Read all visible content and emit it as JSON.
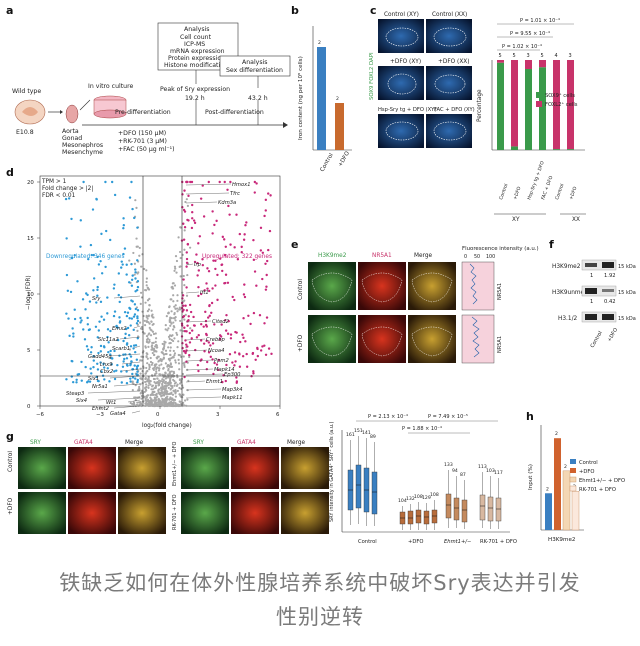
{
  "panel_letters": [
    "a",
    "b",
    "c",
    "d",
    "e",
    "f",
    "g",
    "h"
  ],
  "panel_a": {
    "wild_type": "Wild type",
    "stage": "E10.8",
    "culture": "In vitro culture",
    "tissues": [
      "Aorta",
      "Gonad",
      "Mesonephros",
      "Mesenchyme"
    ],
    "analysis_top": {
      "title": "Analysis",
      "items": [
        "Cell count",
        "ICP-MS",
        "mRNA expression",
        "Protein expression",
        "Histone modification"
      ]
    },
    "peak": "Peak of Sry expression",
    "peak_time": "19.2 h",
    "pre": "Pre-differentiation",
    "post": "Post-differentiation",
    "treatments": [
      "+DFO (150 μM)",
      "+RK-701 (3 μM)",
      "+FAC (50 μg ml⁻¹)"
    ],
    "analysis_right": {
      "title": "Analysis",
      "item": "Sex differentiation"
    },
    "end_time": "43.2 h"
  },
  "panel_b": {
    "ylabel": "Iron content (ng per 10⁶ cells)",
    "categories": [
      "Control",
      "+DFO"
    ],
    "n": [
      "2",
      "2"
    ]
  },
  "panel_c": {
    "image_labels": [
      "Control (XY)",
      "Control (XX)",
      "+DFO (XY)",
      "+DFO (XX)",
      "Hsp-Sry tg + DFO (XY)",
      "FAC + DFO (XY)"
    ],
    "stain": "SOX9 FOXL2 DAPI",
    "pvals": [
      "P = 1.01 × 10⁻⁴",
      "P = 9.55 × 10⁻⁴",
      "P = 1.02 × 10⁻⁴"
    ],
    "ylabel": "Percentage",
    "n": [
      "5",
      "5",
      "3",
      "5",
      "4",
      "3"
    ],
    "legend": [
      "SOX9⁺ cells",
      "FOXL2⁺ cells"
    ],
    "xticks": [
      "Control",
      "+DFO",
      "Hsp-Sry tg + DFO",
      "FAC + DFO",
      "Control",
      "+DFO"
    ],
    "groups": [
      "XY",
      "XX"
    ],
    "colors": {
      "sox9": "#3a9a4a",
      "foxl2": "#c8336a"
    }
  },
  "panel_d": {
    "criteria": [
      "TPM > 1",
      "Fold change > |2|",
      "FDR < 0.01"
    ],
    "down": "Downregulated: 346 genes",
    "up": "Upregulated: 322 genes",
    "ylabel": "−log₁₀(FDR)",
    "xlabel": "log₂(fold change)",
    "xticks": [
      "−6",
      "−3",
      "0",
      "3",
      "6"
    ],
    "yticks": [
      "0",
      "5",
      "10",
      "15",
      "20"
    ],
    "genes_up": [
      "Hmox1",
      "Tfrc",
      "Kdm3a",
      "Irp",
      "Ift1",
      "Cited2",
      "Crebbp",
      "Ncoa4",
      "Ppm2",
      "Mapk14",
      "Ep300",
      "Ehmt1",
      "Map3k4",
      "Mapk11"
    ],
    "genes_down": [
      "Sry",
      "Emx2",
      "Slc11a2",
      "Scarb1",
      "Gadd45g",
      "Lhx9",
      "Cbx2",
      "Six1",
      "Nr5a1",
      "Steap3",
      "Six4",
      "Wt1",
      "Ehmt2",
      "Gata4"
    ],
    "colors": {
      "up": "#c8287a",
      "down": "#2e9ad6",
      "ns": "#a8a8a8"
    }
  },
  "panel_e": {
    "cols": [
      "H3K9me2",
      "NR5A1",
      "Merge"
    ],
    "rows": [
      "Control",
      "+DFO"
    ],
    "profile_title": "Fluorescence intensity (a.u.)",
    "profile_ticks": [
      "0",
      "50",
      "100"
    ],
    "profile_label": "NR5A1"
  },
  "panel_f": {
    "rows": [
      {
        "label": "H3K9me2",
        "vals": [
          "1",
          "1.92"
        ],
        "kda": "15 kDa"
      },
      {
        "label": "H3K9unme",
        "vals": [
          "1",
          "0.42"
        ],
        "kda": "15 kDa"
      },
      {
        "label": "H3.1/2",
        "vals": [],
        "kda": "15 kDa"
      }
    ],
    "lanes": [
      "Control",
      "+DFO"
    ]
  },
  "panel_g": {
    "cols": [
      "SRY",
      "GATA4",
      "Merge"
    ],
    "left_rows": [
      "Control",
      "+DFO"
    ],
    "right_rows": [
      "Ehmt1+/− + DFO",
      "RK-701 + DFO"
    ],
    "pvals": [
      "P = 2.13 × 10⁻⁴",
      "P = 7.49 × 10⁻⁵",
      "P = 1.88 × 10⁻⁴"
    ],
    "ylabel": "SRY intensity in GATA4⁺ SRY⁺ cells (a.u.)",
    "group_labels": [
      "Control",
      "+DFO",
      "Ehmt1+/−",
      "RK-701 + DFO"
    ],
    "n": [
      "161",
      "151",
      "141",
      "89",
      "104",
      "132",
      "108",
      "129",
      "108",
      "133",
      "94",
      "87",
      "113",
      "103",
      "117"
    ],
    "colors": {
      "control": "#3a7fc1",
      "dfo": "#b86d3c",
      "ehmt1": "#c48a5e",
      "rk701": "#d8b8a0"
    }
  },
  "panel_h": {
    "ylabel": "Input (%)",
    "xlabel": "H3K9me2",
    "n": [
      "2",
      "2",
      "2",
      "2"
    ],
    "legend": [
      "Control",
      "+DFO",
      "Ehmt1+/− + DFO",
      "RK-701 + DFO"
    ],
    "colors": [
      "#3a7fc1",
      "#d0622e",
      "#f4d7b4",
      "#fbe8dc"
    ]
  },
  "caption": [
    "铁缺乏如何在体外性腺培养系统中破坏Sry表达并引发",
    "性别逆转"
  ]
}
